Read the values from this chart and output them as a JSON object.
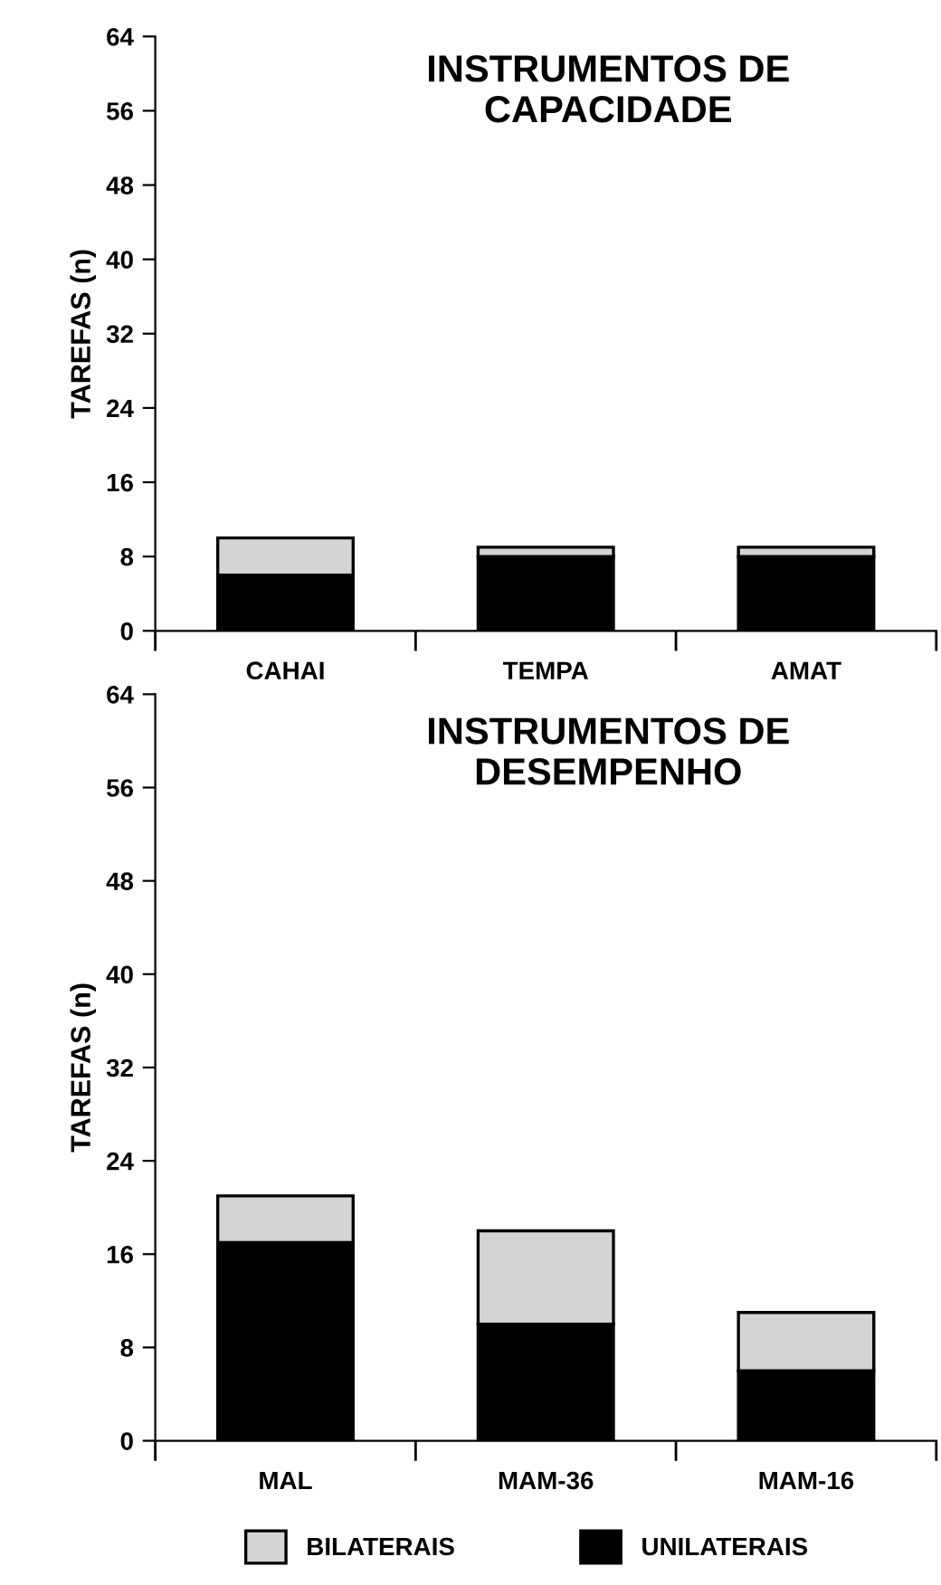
{
  "chart_data": [
    {
      "type": "bar",
      "title": "INSTRUMENTOS DE\nCAPACIDADE",
      "ylabel": "TAREFAS (n)",
      "categories": [
        "CAHAI",
        "TEMPA",
        "AMAT"
      ],
      "stacked": true,
      "ylim": [
        0,
        64
      ],
      "yticks": [
        0,
        8,
        16,
        24,
        32,
        40,
        48,
        56,
        64
      ],
      "grid": false,
      "legend": false,
      "series": [
        {
          "color": "#000000",
          "values": [
            6,
            8,
            8
          ]
        },
        {
          "color": "#d4d4d4",
          "values": [
            4,
            1,
            1
          ]
        }
      ]
    },
    {
      "type": "bar",
      "title": "INSTRUMENTOS DE\nDESEMPENHO",
      "ylabel": "TAREFAS (n)",
      "categories": [
        "MAL",
        "MAM-36",
        "MAM-16"
      ],
      "stacked": true,
      "ylim": [
        0,
        64
      ],
      "yticks": [
        0,
        8,
        16,
        24,
        32,
        40,
        48,
        56,
        64
      ],
      "grid": false,
      "legend": "bottom",
      "series": [
        {
          "name": "UNILATERAIS",
          "color": "#000000",
          "values": [
            17,
            10,
            6
          ]
        },
        {
          "name": "BILATERAIS",
          "color": "#d4d4d4",
          "values": [
            4,
            8,
            5
          ]
        }
      ]
    }
  ]
}
